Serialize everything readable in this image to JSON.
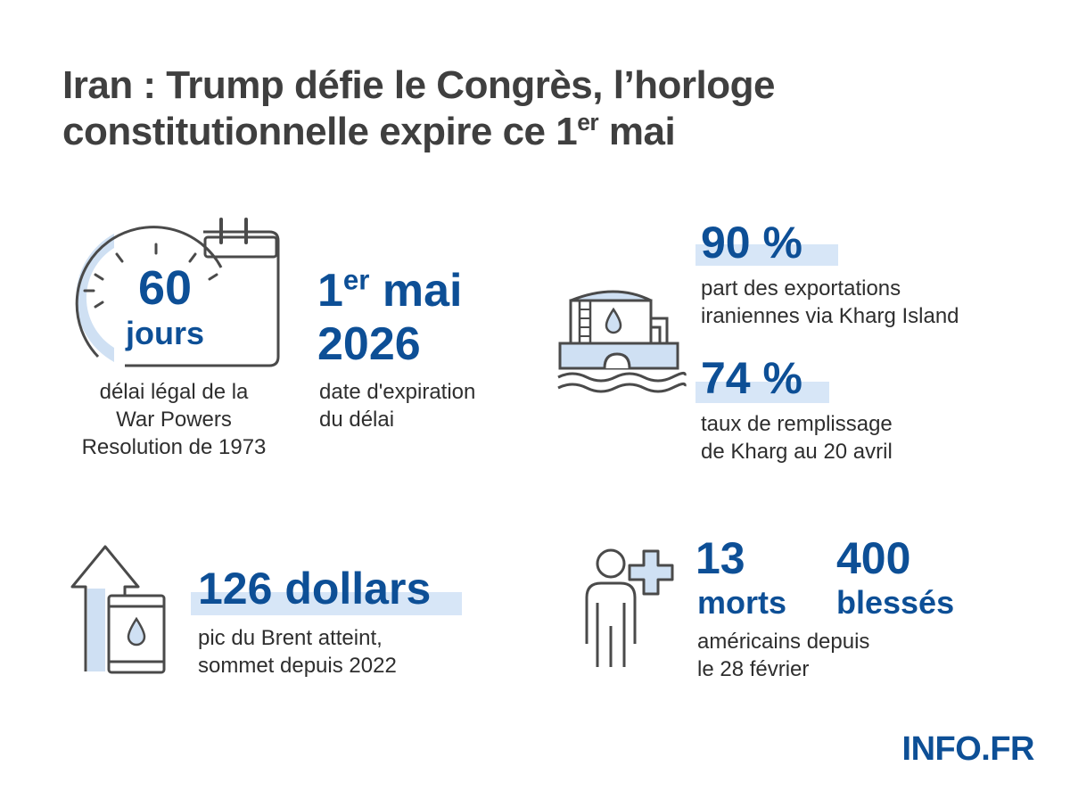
{
  "title": {
    "line1": "Iran : Trump défie le Congrès, l’horloge",
    "line2_main": "constitutionnelle expire ce 1",
    "line2_sup": "er",
    "line2_end": " mai"
  },
  "icons": {
    "clock_calendar": "clock-calendar-icon",
    "oil_tank": "oil-tank-icon",
    "arrow_barrel": "arrow-oil-barrel-icon",
    "person_medical": "person-medical-cross-icon"
  },
  "colors": {
    "accent": "#0d4f96",
    "highlight": "#d7e6f7",
    "icon_stroke": "#4a4a4a",
    "icon_fill": "#cfe0f3"
  },
  "stat_deadline": {
    "number": "60",
    "unit": "jours",
    "desc": [
      "délai légal de la",
      "War Powers",
      "Resolution de 1973"
    ]
  },
  "stat_date": {
    "day": "1",
    "day_sup": "er",
    "month": " mai",
    "year": "2026",
    "desc": [
      "date d'expiration",
      "du délai"
    ]
  },
  "stat_exports": {
    "value": "90 %",
    "desc": [
      "part des exportations",
      "iraniennes via Kharg Island"
    ]
  },
  "stat_storage": {
    "value": "74 %",
    "desc": [
      "taux de remplissage",
      "de Kharg au 20 avril"
    ]
  },
  "stat_brent": {
    "value": "126 dollars",
    "desc": [
      "pic du Brent atteint,",
      "sommet depuis 2022"
    ]
  },
  "stat_casualties": {
    "deaths_number": "13",
    "deaths_label": "morts",
    "injured_number": "400",
    "injured_label": "blessés",
    "desc": [
      "américains depuis",
      "le 28 février"
    ]
  },
  "brand": "INFO.FR"
}
